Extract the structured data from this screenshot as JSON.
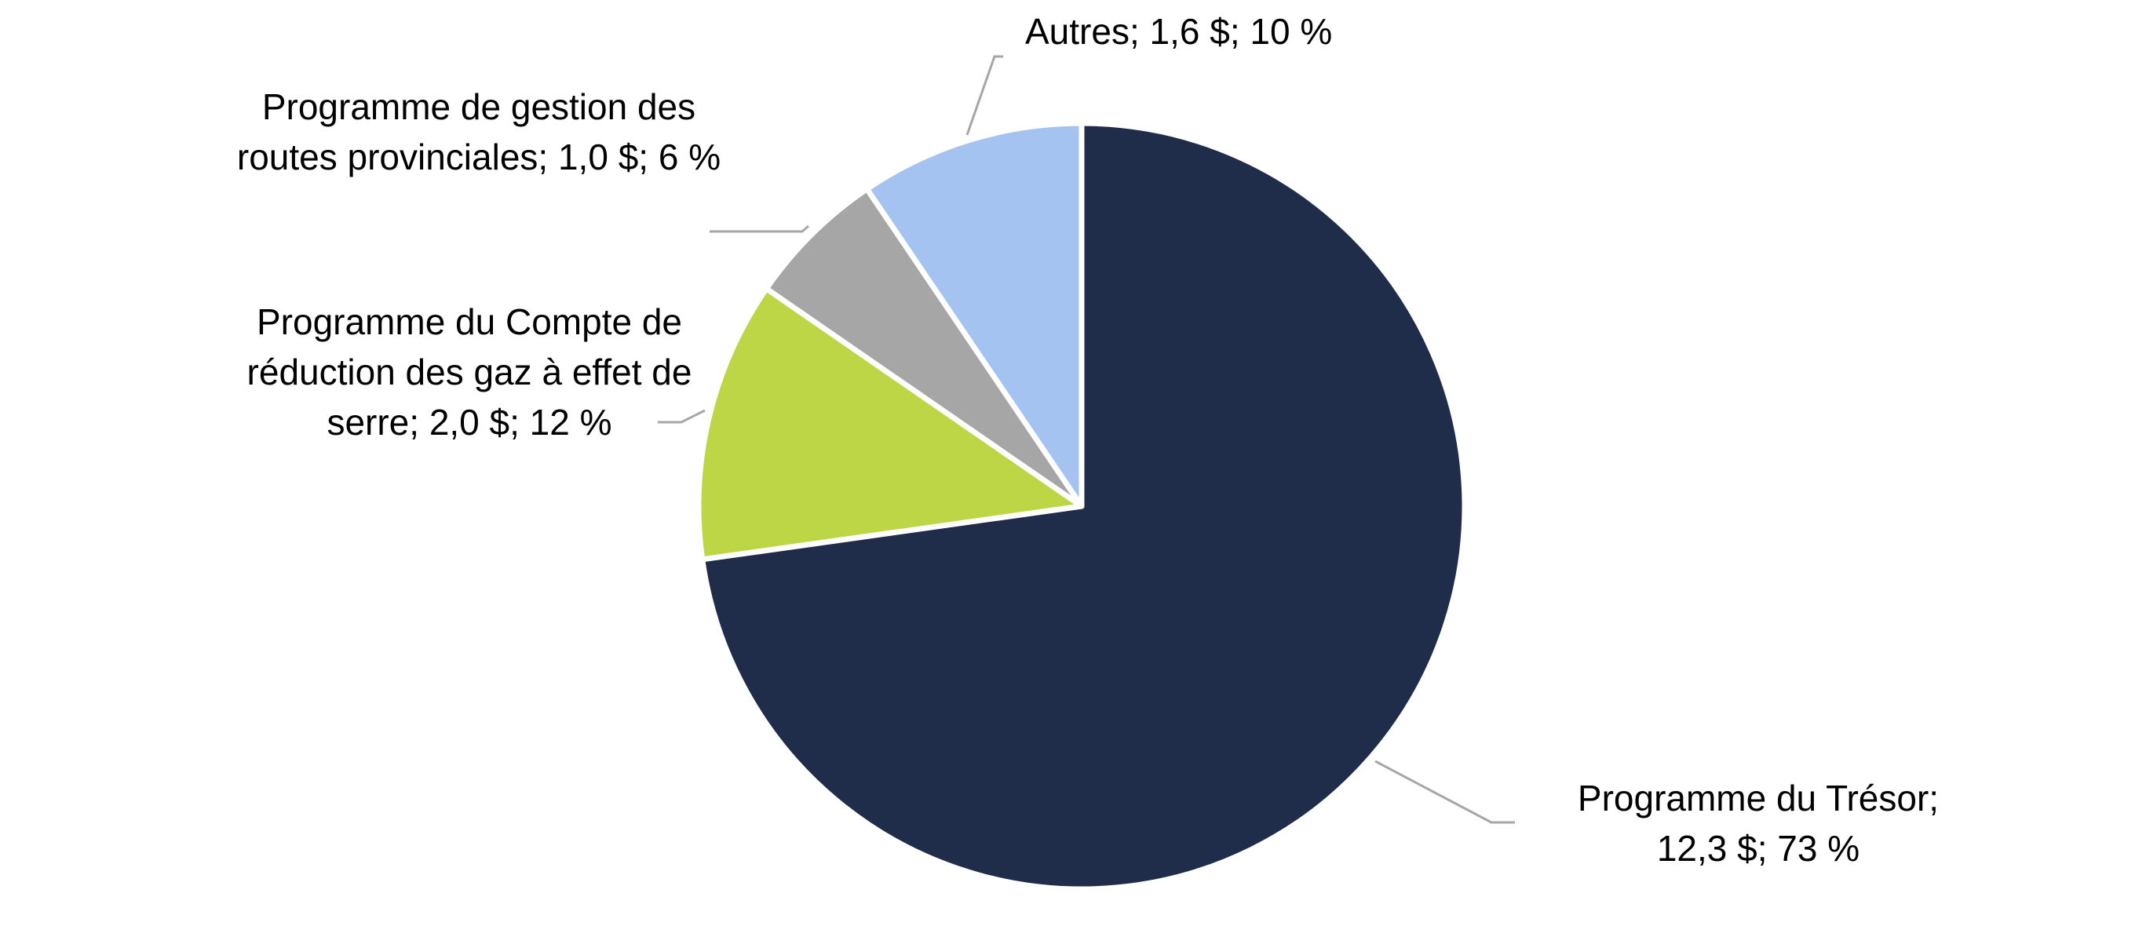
{
  "chart_data": {
    "type": "pie",
    "title": "",
    "slices": [
      {
        "name": "Programme du Trésor",
        "value": 12.3,
        "percent": 73,
        "color": "#1f2d4b",
        "label_lines": [
          "Programme du Trésor;",
          "12,3 $; 73 %"
        ]
      },
      {
        "name": "Programme du Compte de réduction des gaz à effet de serre",
        "value": 2.0,
        "percent": 12,
        "color": "#bcd645",
        "label_lines": [
          "Programme du Compte de",
          "réduction des gaz à effet de",
          "serre; 2,0 $; 12 %"
        ]
      },
      {
        "name": "Programme de gestion des routes provinciales",
        "value": 1.0,
        "percent": 6,
        "color": "#a6a6a6",
        "label_lines": [
          "Programme de gestion des",
          "routes provinciales; 1,0 $; 6 %"
        ]
      },
      {
        "name": "Autres",
        "value": 1.6,
        "percent": 10,
        "color": "#a5c3f0",
        "label_lines": [
          "Autres; 1,6 $; 10 %"
        ]
      }
    ],
    "start_angle": "12 o'clock",
    "direction": "clockwise",
    "slice_border_color": "#ffffff",
    "leader_line_color": "#a6a6a6",
    "legend": "none"
  }
}
